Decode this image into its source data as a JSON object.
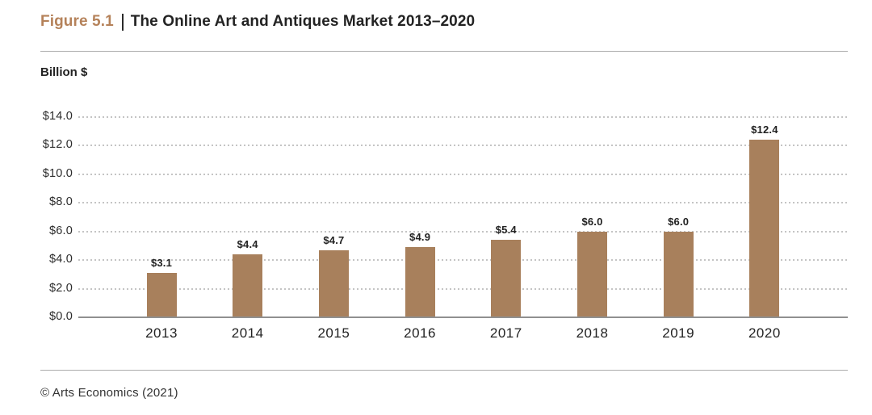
{
  "header": {
    "figure_label": "Figure 5.1",
    "title": "The Online Art and Antiques Market 2013–2020"
  },
  "chart": {
    "units_label": "Billion $"
  },
  "footer": {
    "source": "© Arts Economics (2021)"
  },
  "colors": {
    "bar": "#a8805c",
    "figure_label": "#b5825a",
    "title_text": "#232323",
    "gridline": "#c4c4c4",
    "axis_line": "#909090",
    "rule": "#ababab"
  },
  "chart_data": {
    "type": "bar",
    "title": "The Online Art and Antiques Market 2013–2020",
    "categories": [
      "2013",
      "2014",
      "2015",
      "2016",
      "2017",
      "2018",
      "2019",
      "2020"
    ],
    "values": [
      3.1,
      4.4,
      4.7,
      4.9,
      5.4,
      6.0,
      6.0,
      12.4
    ],
    "bar_labels": [
      "$3.1",
      "$4.4",
      "$4.7",
      "$4.9",
      "$5.4",
      "$6.0",
      "$6.0",
      "$12.4"
    ],
    "xlabel": "",
    "ylabel": "Billion $",
    "ylim": [
      0,
      14
    ],
    "ytick_interval": 2,
    "ytick_labels": [
      "$0.0",
      "$2.0",
      "$4.0",
      "$6.0",
      "$8.0",
      "$10.0",
      "$12.0",
      "$14.0"
    ],
    "grid": "horizontal-dotted",
    "legend": "none",
    "bar_color": "#a8805c",
    "source": "© Arts Economics (2021)"
  }
}
